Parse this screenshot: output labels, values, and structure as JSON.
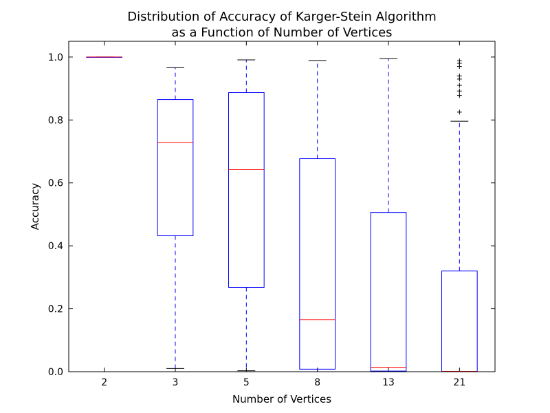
{
  "chart_data": {
    "type": "box",
    "title": "Distribution of Accuracy of Karger-Stein Algorithm",
    "subtitle": "as a Function of Number of Vertices",
    "xlabel": "Number of Vertices",
    "ylabel": "Accuracy",
    "ylim": [
      0.0,
      1.05
    ],
    "yticks": [
      "0.0",
      "0.2",
      "0.4",
      "0.6",
      "0.8",
      "1.0"
    ],
    "categories": [
      "2",
      "3",
      "5",
      "8",
      "13",
      "21"
    ],
    "grid": false,
    "colors": {
      "box": "#0000ff",
      "median": "#ff0000",
      "whisker": "#0000ff",
      "cap": "#000000",
      "flier": "#000000"
    },
    "boxes": [
      {
        "category": "2",
        "whislo": 1.0,
        "q1": 1.0,
        "med": 1.0,
        "q3": 1.0,
        "whishi": 1.0,
        "fliers": []
      },
      {
        "category": "3",
        "whislo": 0.01,
        "q1": 0.432,
        "med": 0.728,
        "q3": 0.865,
        "whishi": 0.966,
        "fliers": []
      },
      {
        "category": "5",
        "whislo": 0.003,
        "q1": 0.268,
        "med": 0.642,
        "q3": 0.887,
        "whishi": 0.991,
        "fliers": []
      },
      {
        "category": "8",
        "whislo": 0.0,
        "q1": 0.008,
        "med": 0.165,
        "q3": 0.677,
        "whishi": 0.989,
        "fliers": []
      },
      {
        "category": "13",
        "whislo": 0.0,
        "q1": 0.002,
        "med": 0.014,
        "q3": 0.506,
        "whishi": 0.995,
        "fliers": []
      },
      {
        "category": "21",
        "whislo": 0.0,
        "q1": 0.0,
        "med": 0.001,
        "q3": 0.32,
        "whishi": 0.796,
        "fliers": [
          0.825,
          0.878,
          0.892,
          0.91,
          0.93,
          0.94,
          0.97,
          0.98,
          0.988
        ]
      }
    ]
  }
}
